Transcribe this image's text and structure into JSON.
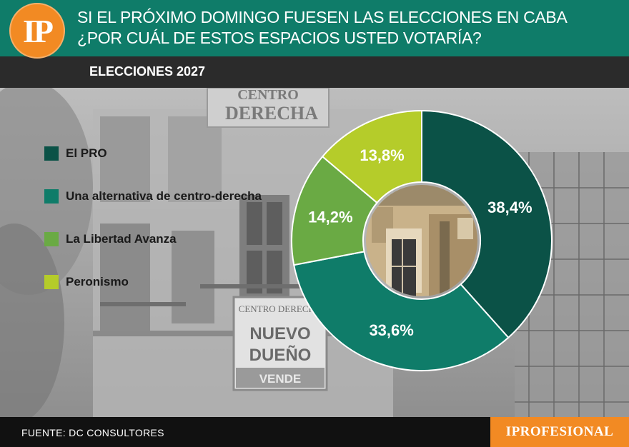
{
  "header": {
    "logo": "IP",
    "title_line1": "SI EL PRÓXIMO DOMINGO FUESEN LAS ELECCIONES EN CABA",
    "title_line2": "¿POR CUÁL DE ESTOS ESPACIOS USTED VOTARÍA?",
    "subtitle": "ELECCIONES 2027"
  },
  "background_sign": {
    "top_label_1": "CENTRO",
    "top_label_2": "DERECHA",
    "sign_top": "CENTRO DERECHA",
    "sign_line1": "NUEVO",
    "sign_line2": "DUEÑO",
    "sign_bottom": "VENDE"
  },
  "chart_data": {
    "type": "donut",
    "series": [
      {
        "name": "El PRO",
        "value": 38.4,
        "label": "38,4%",
        "color": "#0b5247"
      },
      {
        "name": "Una alternativa de centro-derecha",
        "value": 33.6,
        "label": "33,6%",
        "color": "#0f7c69"
      },
      {
        "name": "La Libertad Avanza",
        "value": 14.2,
        "label": "14,2%",
        "color": "#6aaa44"
      },
      {
        "name": "Peronismo",
        "value": 13.8,
        "label": "13,8%",
        "color": "#b5cc2a"
      }
    ],
    "legend_position": "left"
  },
  "footer": {
    "source": "FUENTE: DC CONSULTORES",
    "brand": "IPROFESIONAL"
  }
}
